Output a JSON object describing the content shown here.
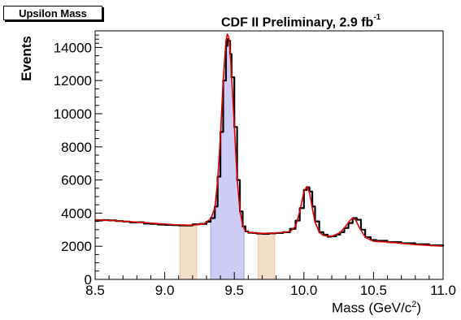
{
  "chart_data": {
    "type": "line",
    "title": "Upsilon Mass",
    "header": {
      "prefix": "CDF II Preliminary, 2.9 fb",
      "superscript": "-1"
    },
    "xlabel": {
      "prefix": "Mass (GeV/c",
      "superscript": "2",
      "suffix": ")"
    },
    "ylabel": "Events",
    "xlim": [
      8.5,
      11.0
    ],
    "ylim": [
      0,
      15000
    ],
    "x_ticks": [
      {
        "value": 8.5,
        "label": "8.5"
      },
      {
        "value": 9.0,
        "label": "9.0"
      },
      {
        "value": 9.5,
        "label": "9.5"
      },
      {
        "value": 10.0,
        "label": "10.0"
      },
      {
        "value": 10.5,
        "label": "10.5"
      },
      {
        "value": 11.0,
        "label": "11.0"
      }
    ],
    "y_ticks": [
      {
        "value": 0,
        "label": "0"
      },
      {
        "value": 2000,
        "label": "2000"
      },
      {
        "value": 4000,
        "label": "4000"
      },
      {
        "value": 6000,
        "label": "6000"
      },
      {
        "value": 8000,
        "label": "8000"
      },
      {
        "value": 10000,
        "label": "10000"
      },
      {
        "value": 12000,
        "label": "12000"
      },
      {
        "value": 14000,
        "label": "14000"
      }
    ],
    "grid": false,
    "legend": "none",
    "shaded_regions": [
      {
        "x_range": [
          9.11,
          9.23
        ],
        "color": "#e8c49a",
        "role": "sideband"
      },
      {
        "x_range": [
          9.33,
          9.57
        ],
        "color": "#8e8ee8",
        "role": "signal"
      },
      {
        "x_range": [
          9.67,
          9.79
        ],
        "color": "#e8c49a",
        "role": "sideband"
      }
    ],
    "series": [
      {
        "role": "data-histogram",
        "color": "#000000",
        "x": [
          8.5,
          8.55,
          8.6,
          8.65,
          8.7,
          8.75,
          8.8,
          8.85,
          8.9,
          8.95,
          9.0,
          9.05,
          9.1,
          9.15,
          9.2,
          9.25,
          9.3,
          9.33,
          9.36,
          9.38,
          9.4,
          9.42,
          9.44,
          9.45,
          9.46,
          9.47,
          9.48,
          9.5,
          9.52,
          9.54,
          9.56,
          9.58,
          9.6,
          9.63,
          9.66,
          9.7,
          9.75,
          9.8,
          9.85,
          9.9,
          9.94,
          9.97,
          10.0,
          10.02,
          10.04,
          10.06,
          10.08,
          10.11,
          10.14,
          10.17,
          10.2,
          10.23,
          10.26,
          10.29,
          10.32,
          10.35,
          10.38,
          10.41,
          10.44,
          10.48,
          10.52,
          10.6,
          10.7,
          10.8,
          10.9,
          11.0
        ],
        "y": [
          3550,
          3580,
          3560,
          3520,
          3490,
          3440,
          3450,
          3370,
          3350,
          3310,
          3290,
          3280,
          3260,
          3250,
          3320,
          3350,
          3480,
          3700,
          4400,
          6200,
          8900,
          12000,
          14100,
          14500,
          14400,
          13600,
          12200,
          9200,
          6000,
          4100,
          3200,
          2900,
          2820,
          2800,
          2770,
          2750,
          2780,
          2800,
          2850,
          3050,
          3550,
          4300,
          5400,
          5550,
          5300,
          4400,
          3500,
          2850,
          2700,
          2580,
          2600,
          2700,
          2850,
          3100,
          3400,
          3700,
          3600,
          3000,
          2550,
          2380,
          2330,
          2250,
          2180,
          2120,
          2060,
          2000
        ]
      },
      {
        "role": "fit-curve",
        "color": "#e00000",
        "x": [
          8.5,
          8.6,
          8.7,
          8.8,
          8.9,
          9.0,
          9.1,
          9.2,
          9.28,
          9.33,
          9.36,
          9.38,
          9.4,
          9.42,
          9.44,
          9.45,
          9.46,
          9.47,
          9.48,
          9.5,
          9.52,
          9.54,
          9.56,
          9.58,
          9.6,
          9.65,
          9.7,
          9.8,
          9.9,
          9.94,
          9.97,
          10.0,
          10.02,
          10.04,
          10.06,
          10.08,
          10.11,
          10.14,
          10.2,
          10.26,
          10.3,
          10.33,
          10.35,
          10.37,
          10.4,
          10.44,
          10.5,
          10.6,
          10.8,
          11.0
        ],
        "y": [
          3600,
          3560,
          3510,
          3460,
          3400,
          3340,
          3290,
          3270,
          3350,
          3650,
          4300,
          5900,
          8600,
          12000,
          14400,
          14800,
          14600,
          13800,
          12300,
          9300,
          6100,
          4200,
          3250,
          2950,
          2850,
          2800,
          2780,
          2800,
          2880,
          3200,
          4100,
          5300,
          5600,
          5250,
          4300,
          3450,
          2850,
          2650,
          2600,
          2820,
          3200,
          3550,
          3700,
          3600,
          3100,
          2550,
          2300,
          2250,
          2100,
          2000
        ]
      }
    ]
  }
}
